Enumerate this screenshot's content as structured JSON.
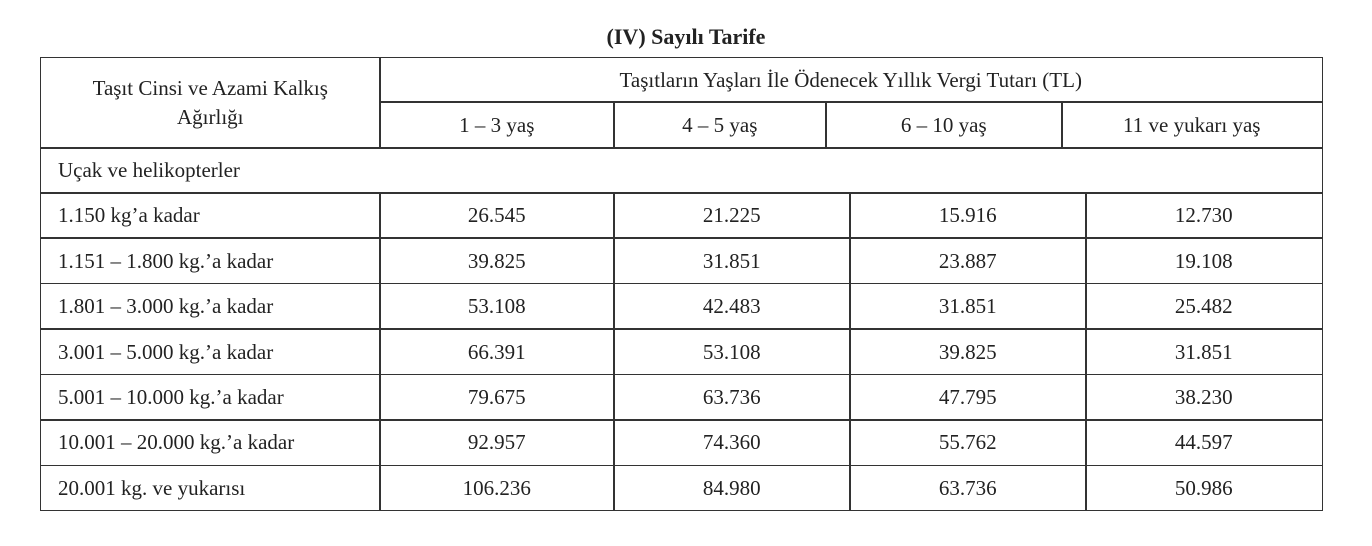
{
  "title": "(IV) Sayılı Tarife",
  "table": {
    "header": {
      "first": "Taşıt Cinsi ve Azami Kalkış Ağırlığı",
      "group": "Taşıtların Yaşları İle Ödenecek Yıllık Vergi Tutarı (TL)",
      "columns": [
        "1 – 3 yaş",
        "4 – 5 yaş",
        "6 – 10 yaş",
        "11 ve yukarı yaş"
      ]
    },
    "section": "Uçak ve helikopterler",
    "rows": [
      [
        "1.150 kg’a kadar",
        "26.545",
        "21.225",
        "15.916",
        "12.730"
      ],
      [
        "1.151 – 1.800 kg.’a kadar",
        "39.825",
        "31.851",
        "23.887",
        "19.108"
      ],
      [
        "1.801 – 3.000 kg.’a kadar",
        "53.108",
        "42.483",
        "31.851",
        "25.482"
      ],
      [
        "3.001 – 5.000 kg.’a kadar",
        "66.391",
        "53.108",
        "39.825",
        "31.851"
      ],
      [
        "5.001 – 10.000 kg.’a kadar",
        "79.675",
        "63.736",
        "47.795",
        "38.230"
      ],
      [
        "10.001 – 20.000 kg.’a kadar",
        "92.957",
        "74.360",
        "55.762",
        "44.597"
      ],
      [
        "20.001 kg. ve yukarısı",
        "106.236",
        "84.980",
        "63.736",
        "50.986"
      ]
    ]
  }
}
